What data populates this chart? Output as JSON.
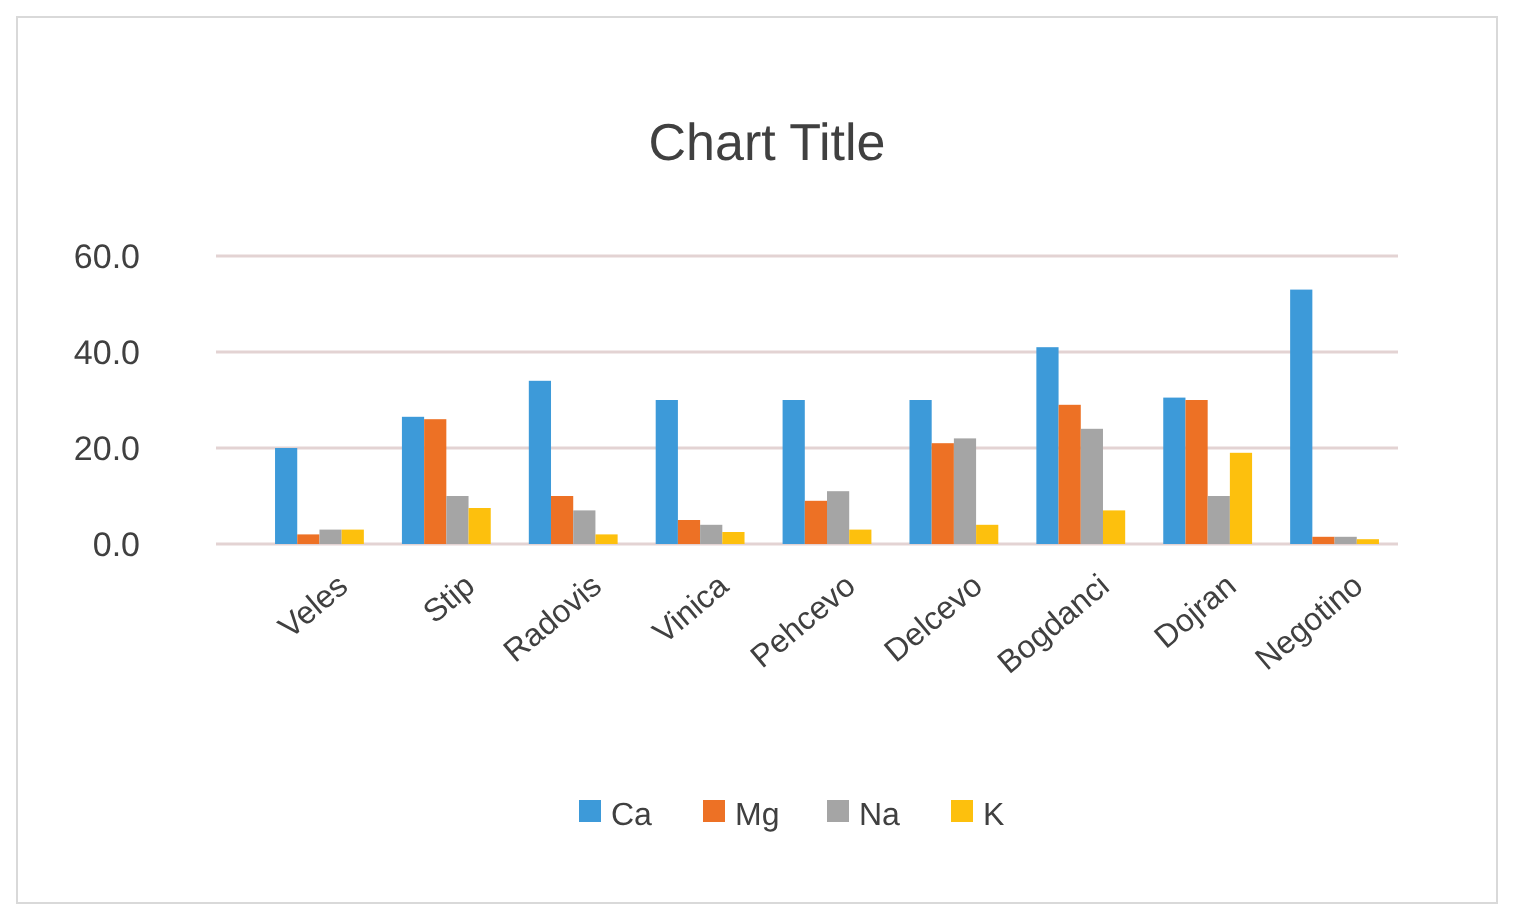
{
  "chart_data": {
    "type": "bar",
    "title": "Chart Title",
    "categories": [
      "Veles",
      "Stip",
      "Radovis",
      "Vinica",
      "Pehcevo",
      "Delcevo",
      "Bogdanci",
      "Dojran",
      "Negotino"
    ],
    "series": [
      {
        "name": "Ca",
        "color": "#3d9ad9",
        "values": [
          20,
          26.5,
          34,
          30,
          30,
          30,
          41,
          30.5,
          53
        ]
      },
      {
        "name": "Mg",
        "color": "#ed7125",
        "values": [
          2,
          26,
          10,
          5,
          9,
          21,
          29,
          30,
          1.5
        ]
      },
      {
        "name": "Na",
        "color": "#a5a5a5",
        "values": [
          3,
          10,
          7,
          4,
          11,
          22,
          24,
          10,
          1.5
        ]
      },
      {
        "name": "K",
        "color": "#fdc00d",
        "values": [
          3,
          7.5,
          2,
          2.5,
          3,
          4,
          7,
          19,
          1
        ]
      }
    ],
    "ylim": [
      0,
      60
    ],
    "yticks": [
      {
        "value": 0,
        "label": "0.0"
      },
      {
        "value": 20,
        "label": "20.0"
      },
      {
        "value": 40,
        "label": "40.0"
      },
      {
        "value": 60,
        "label": "60.0"
      }
    ],
    "grid": "y",
    "legend": "bottom"
  }
}
